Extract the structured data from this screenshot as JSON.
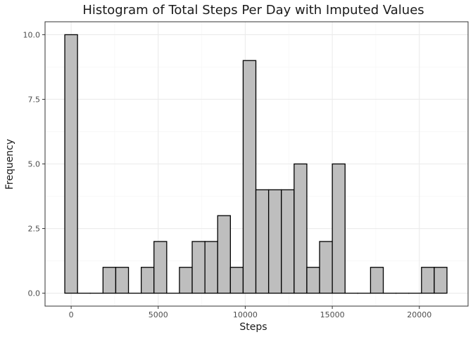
{
  "chart_data": {
    "type": "bar",
    "title": "Histogram of Total Steps Per Day with Imputed Values",
    "xlabel": "Steps",
    "ylabel": "Frequency",
    "bin_width": 731.8,
    "bin_centers": [
      0,
      731.8,
      1463.6,
      2195.4,
      2927.2,
      3659,
      4390.8,
      5122.6,
      5854.4,
      6586.2,
      7318,
      8049.8,
      8781.6,
      9513.4,
      10245.2,
      10977,
      11708.8,
      12440.6,
      13172.4,
      13904.2,
      14636,
      15367.8,
      16099.6,
      16831.4,
      17563.2,
      18295,
      19026.8,
      19758.6,
      20490.4,
      21222.2
    ],
    "values": [
      10,
      0,
      0,
      1,
      1,
      0,
      1,
      2,
      0,
      1,
      2,
      2,
      3,
      1,
      9,
      4,
      4,
      4,
      5,
      1,
      2,
      5,
      0,
      0,
      1,
      0,
      0,
      0,
      1,
      1
    ],
    "xlim": [
      -1500,
      22800
    ],
    "ylim": [
      -0.5,
      10.5
    ],
    "x_ticks": [
      0,
      5000,
      10000,
      15000,
      20000
    ],
    "x_tick_labels": [
      "0",
      "5000",
      "10000",
      "15000",
      "20000"
    ],
    "y_ticks": [
      0,
      2.5,
      5,
      7.5,
      10
    ],
    "y_tick_labels": [
      "0.0",
      "2.5",
      "5.0",
      "7.5",
      "10.0"
    ],
    "grid": true,
    "colors": {
      "bar_fill": "#bebebe",
      "bar_outline": "#000000",
      "grid": "#ebebeb"
    }
  }
}
